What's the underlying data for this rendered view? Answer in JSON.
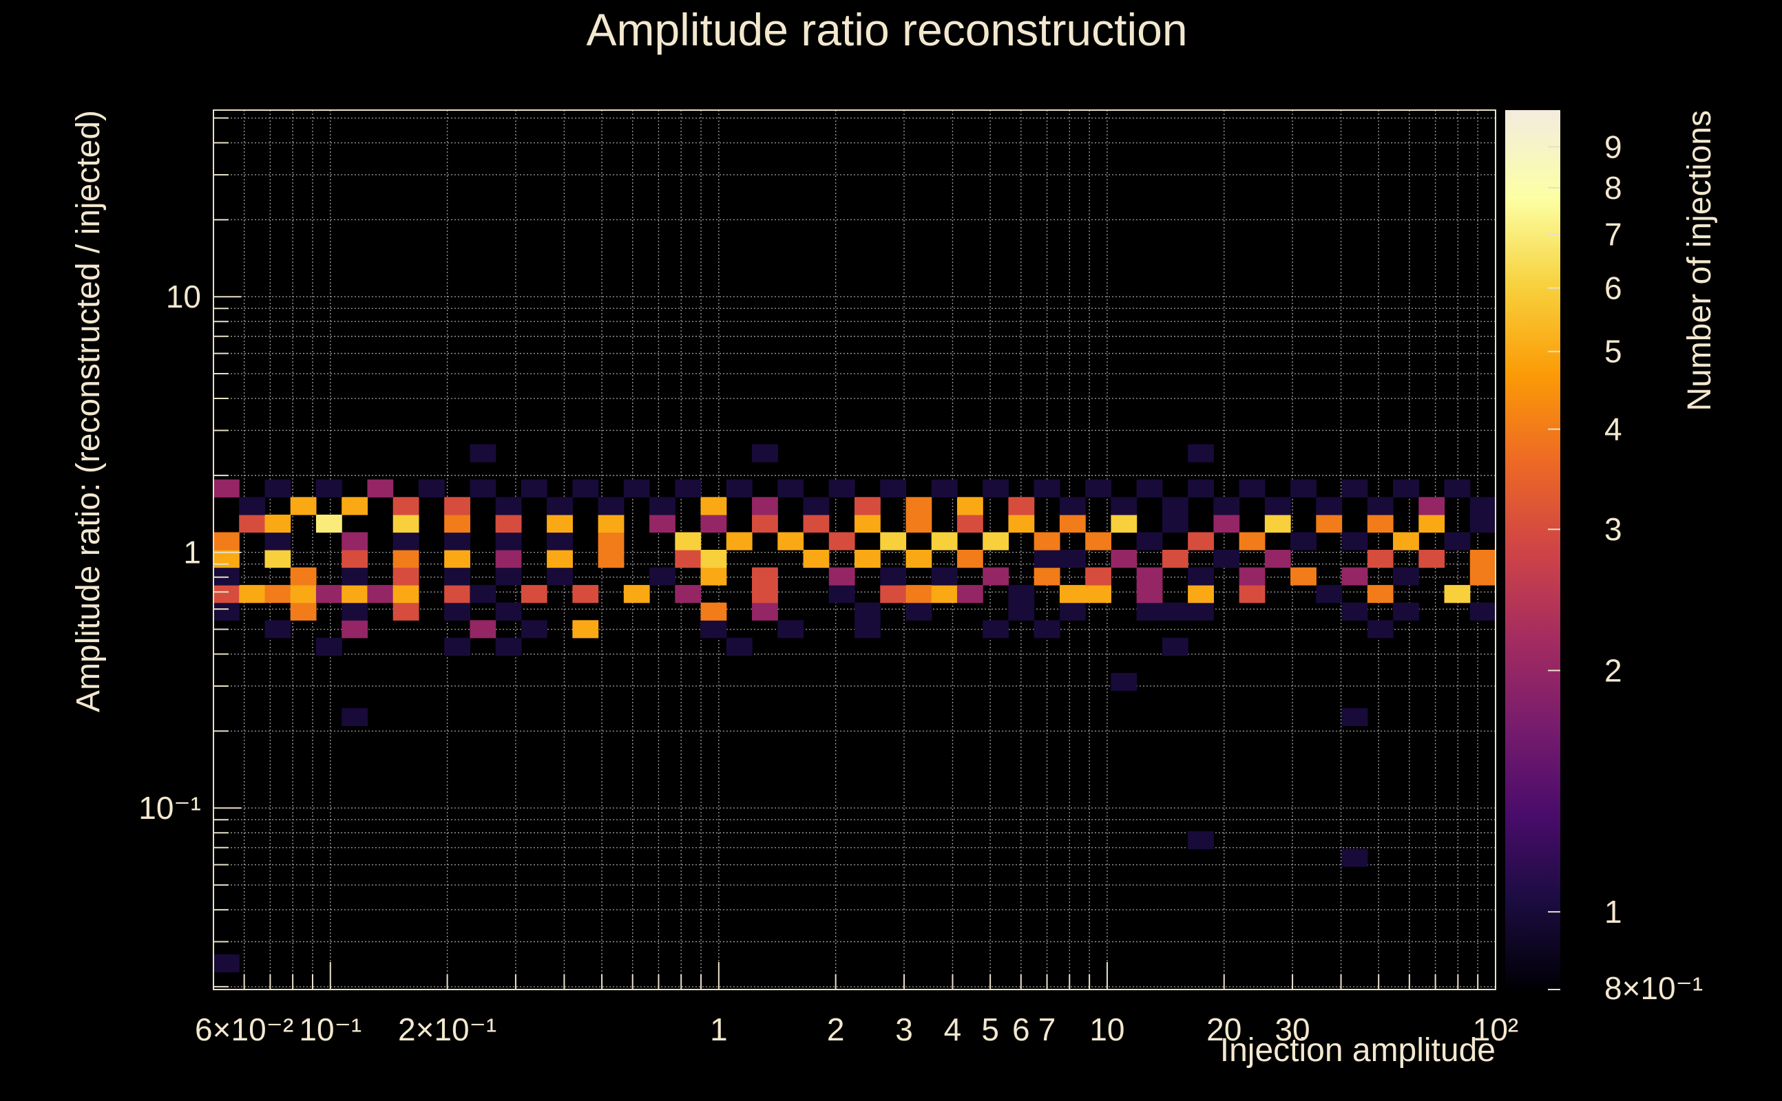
{
  "chart_data": {
    "type": "heatmap",
    "title": "Amplitude ratio reconstruction",
    "xlabel": "Injection amplitude",
    "ylabel": "Amplitude ratio: (reconstructed / injected)",
    "zlabel": "Number of injections",
    "x_scale": "log",
    "y_scale": "log",
    "z_scale": "log",
    "xlim": [
      0.05,
      100
    ],
    "ylim": [
      0.0195,
      53.7
    ],
    "zlim": [
      0.8,
      10
    ],
    "grid": true,
    "x_bins": 50,
    "y_bins": 50,
    "x_ticks": [
      {
        "value": 0.06,
        "label": "6×10⁻²"
      },
      {
        "value": 0.1,
        "label": "10⁻¹"
      },
      {
        "value": 0.2,
        "label": "2×10⁻¹"
      },
      {
        "value": 1,
        "label": "1"
      },
      {
        "value": 2,
        "label": "2"
      },
      {
        "value": 3,
        "label": "3"
      },
      {
        "value": 4,
        "label": "4"
      },
      {
        "value": 5,
        "label": "5"
      },
      {
        "value": 6,
        "label": "6"
      },
      {
        "value": 7,
        "label": "7"
      },
      {
        "value": 10,
        "label": "10"
      },
      {
        "value": 20,
        "label": "20"
      },
      {
        "value": 30,
        "label": "30"
      },
      {
        "value": 100,
        "label": "10²"
      }
    ],
    "y_ticks": [
      {
        "value": 0.1,
        "label": "10⁻¹"
      },
      {
        "value": 1,
        "label": "1"
      },
      {
        "value": 10,
        "label": "10"
      }
    ],
    "z_ticks": [
      {
        "value": 0.8,
        "label": "8×10⁻¹"
      },
      {
        "value": 1,
        "label": "1"
      },
      {
        "value": 2,
        "label": "2"
      },
      {
        "value": 3,
        "label": "3"
      },
      {
        "value": 4,
        "label": "4"
      },
      {
        "value": 5,
        "label": "5"
      },
      {
        "value": 6,
        "label": "6"
      },
      {
        "value": 7,
        "label": "7"
      },
      {
        "value": 8,
        "label": "8"
      },
      {
        "value": 9,
        "label": "9"
      }
    ],
    "colormap": [
      "#000004",
      "#1b0c41",
      "#4a0c6b",
      "#781c6d",
      "#a52c60",
      "#cf4446",
      "#ed6925",
      "#fb9b06",
      "#f7d13d",
      "#fcffa4",
      "#f3ecdf"
    ],
    "bin_rows": [
      {
        "y_bin": 1,
        "counts": "1................................................."
      },
      {
        "y_bin": 7,
        "counts": "............................................1....."
      },
      {
        "y_bin": 8,
        "counts": "......................................1..........."
      },
      {
        "y_bin": 15,
        "counts": ".....1......................................1....."
      },
      {
        "y_bin": 17,
        "counts": "...................................1..............."
      },
      {
        "y_bin": 19,
        "counts": "....1....1.1........1................1............"
      },
      {
        "y_bin": 20,
        "counts": "..1..2....2.1.5....1..1..1....1.1............1...."
      },
      {
        "y_bin": 21,
        "counts": "1..4.1.3.1.1.......4.2...1.1...1.1..111.....1.1..1"
      },
      {
        "y_bin": 22,
        "counts": "35452525.31.3.3.5.2..3..1.3452.1.55.2.5.3..1.4..6"
      },
      {
        "y_bin": 23,
        "counts": "1..4.1.3.1.1.1...1.5.3..2.1.1.2.4.3.2.1.2.4.2.1..4"
      },
      {
        "y_bin": 24,
        "counts": "5.6..3.4.5.2.5.4..36...5.5.5.4..11.2.3.1.2...3.3.4"
      },
      {
        "y_bin": 25,
        "counts": "4.1..2.1.1.1.1.4..6.5.5.3.6.6.6.4.4.1.3.4.1.1.5.1."
      },
      {
        "y_bin": 26,
        "counts": ".35.7..6.4.3.5.5.2.2.3.3.5.4.3.5.4.6.1.2.6.4.4.5.1"
      },
      {
        "y_bin": 27,
        "counts": ".1.5.5.3.3.1.1.1.1.5.2.1.3.4.5.3.1.1.1.1.1.1.1.2.1"
      },
      {
        "y_bin": 28,
        "counts": "2.1.1.2.1.1.1.1.1.1.1.1.1.1.1.1.1.1.1.1.1.1.1.1.1."
      },
      {
        "y_bin": 30,
        "counts": "..........1..........1................1.........."
      }
    ]
  }
}
